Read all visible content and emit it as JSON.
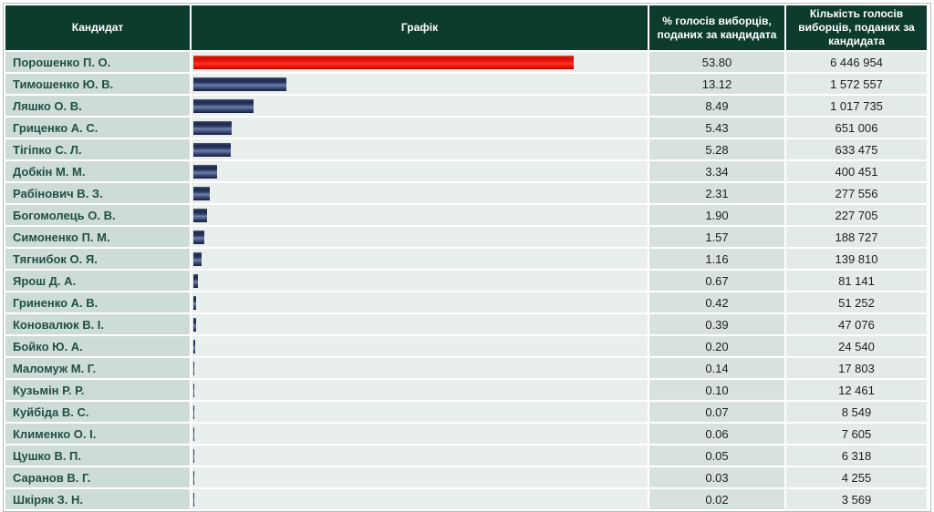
{
  "table": {
    "headers": [
      {
        "label": "Кандидат"
      },
      {
        "label": "Графік"
      },
      {
        "label": "% голосів виборців, поданих за кандидата"
      },
      {
        "label": "Кількість голосів виборців, поданих за кандидата"
      }
    ],
    "rows": [
      {
        "candidate": "Порошенко П. О.",
        "percent": "53.80",
        "votes": "6 446 954",
        "bar": "red"
      },
      {
        "candidate": "Тимошенко Ю. В.",
        "percent": "13.12",
        "votes": "1 572 557",
        "bar": "blue"
      },
      {
        "candidate": "Ляшко О. В.",
        "percent": "8.49",
        "votes": "1 017 735",
        "bar": "blue"
      },
      {
        "candidate": "Гриценко А. С.",
        "percent": "5.43",
        "votes": "651 006",
        "bar": "blue"
      },
      {
        "candidate": "Тігіпко С. Л.",
        "percent": "5.28",
        "votes": "633 475",
        "bar": "blue"
      },
      {
        "candidate": "Добкін М. М.",
        "percent": "3.34",
        "votes": "400 451",
        "bar": "blue"
      },
      {
        "candidate": "Рабінович В. З.",
        "percent": "2.31",
        "votes": "277 556",
        "bar": "blue"
      },
      {
        "candidate": "Богомолець О. В.",
        "percent": "1.90",
        "votes": "227 705",
        "bar": "blue"
      },
      {
        "candidate": "Симоненко П. М.",
        "percent": "1.57",
        "votes": "188 727",
        "bar": "blue"
      },
      {
        "candidate": "Тягнибок О. Я.",
        "percent": "1.16",
        "votes": "139 810",
        "bar": "blue"
      },
      {
        "candidate": "Ярош Д. А.",
        "percent": "0.67",
        "votes": "81 141",
        "bar": "blue"
      },
      {
        "candidate": "Гриненко А. В.",
        "percent": "0.42",
        "votes": "51 252",
        "bar": "blue"
      },
      {
        "candidate": "Коновалюк В. І.",
        "percent": "0.39",
        "votes": "47 076",
        "bar": "blue"
      },
      {
        "candidate": "Бойко Ю. А.",
        "percent": "0.20",
        "votes": "24 540",
        "bar": "blue"
      },
      {
        "candidate": "Маломуж М. Г.",
        "percent": "0.14",
        "votes": "17 803",
        "bar": "blue"
      },
      {
        "candidate": "Кузьмін Р. Р.",
        "percent": "0.10",
        "votes": "12 461",
        "bar": "blue"
      },
      {
        "candidate": "Куйбіда В. С.",
        "percent": "0.07",
        "votes": "8 549",
        "bar": "blue"
      },
      {
        "candidate": "Клименко О. І.",
        "percent": "0.06",
        "votes": "7 605",
        "bar": "blue"
      },
      {
        "candidate": "Цушко В. П.",
        "percent": "0.05",
        "votes": "6 318",
        "bar": "blue"
      },
      {
        "candidate": "Саранов В. Г.",
        "percent": "0.03",
        "votes": "4 255",
        "bar": "blue"
      },
      {
        "candidate": "Шкіряк З. Н.",
        "percent": "0.02",
        "votes": "3 569",
        "bar": "blue"
      }
    ]
  },
  "chart_data": {
    "type": "bar",
    "orientation": "horizontal",
    "title": "",
    "xlabel": "% голосів виборців, поданих за кандидата",
    "ylabel": "Кандидат",
    "categories": [
      "Порошенко П. О.",
      "Тимошенко Ю. В.",
      "Ляшко О. В.",
      "Гриценко А. С.",
      "Тігіпко С. Л.",
      "Добкін М. М.",
      "Рабінович В. З.",
      "Богомолець О. В.",
      "Симоненко П. М.",
      "Тягнибок О. Я.",
      "Ярош Д. А.",
      "Гриненко А. В.",
      "Коновалюк В. І.",
      "Бойко Ю. А.",
      "Маломуж М. Г.",
      "Кузьмін Р. Р.",
      "Куйбіда В. С.",
      "Клименко О. І.",
      "Цушко В. П.",
      "Саранов В. Г.",
      "Шкіряк З. Н."
    ],
    "series": [
      {
        "name": "% голосів виборців, поданих за кандидата",
        "values": [
          53.8,
          13.12,
          8.49,
          5.43,
          5.28,
          3.34,
          2.31,
          1.9,
          1.57,
          1.16,
          0.67,
          0.42,
          0.39,
          0.2,
          0.14,
          0.1,
          0.07,
          0.06,
          0.05,
          0.03,
          0.02
        ]
      },
      {
        "name": "Кількість голосів виборців, поданих за кандидата",
        "values": [
          6446954,
          1572557,
          1017735,
          651006,
          633475,
          400451,
          277556,
          227705,
          188727,
          139810,
          81141,
          51252,
          47076,
          24540,
          17803,
          12461,
          8549,
          7605,
          6318,
          4255,
          3569
        ]
      }
    ],
    "xlim": [
      0,
      64.2
    ],
    "grid": false,
    "legend_position": "none",
    "bar_colors": {
      "leader": "#f21408",
      "default": "#2c3a68"
    }
  },
  "colors": {
    "header_bg": "#0d3b2e",
    "header_text": "#ffffff",
    "name_cell_bg": "#cedcd8",
    "name_text": "#1f5044",
    "graph_cell_bg": "#e9efed",
    "percent_cell_bg": "#d7e2de",
    "votes_cell_bg": "#e2ebe8",
    "outer_border": "#b3bfbb"
  }
}
